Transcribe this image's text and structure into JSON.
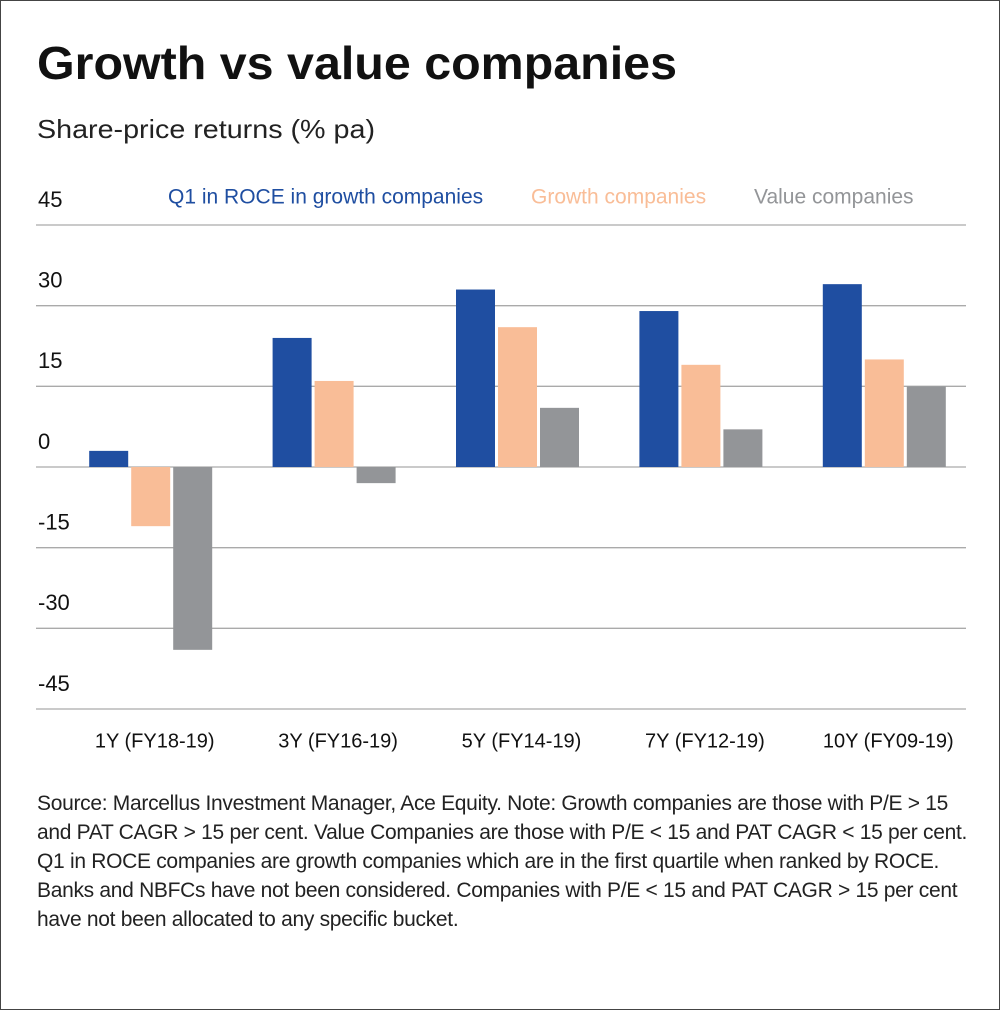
{
  "chart_data": {
    "type": "bar",
    "title": "Growth vs value companies",
    "subtitle": "Share-price returns (% pa)",
    "categories": [
      "1Y (FY18-19)",
      "3Y (FY16-19)",
      "5Y (FY14-19)",
      "7Y (FY12-19)",
      "10Y (FY09-19)"
    ],
    "series": [
      {
        "name": "Q1 in ROCE in growth companies",
        "color": "#1f4ea1",
        "values": [
          3,
          24,
          33,
          29,
          34
        ]
      },
      {
        "name": "Growth companies",
        "color": "#f9bd97",
        "values": [
          -11,
          16,
          26,
          19,
          20
        ]
      },
      {
        "name": "Value companies",
        "color": "#939598",
        "values": [
          -34,
          -3,
          11,
          7,
          15
        ]
      }
    ],
    "ylim": [
      -45,
      45
    ],
    "yticks": [
      45,
      30,
      15,
      0,
      -15,
      -30,
      -45
    ],
    "grid": true,
    "legend": "top",
    "note": "Source: Marcellus Investment Manager, Ace Equity. Note: Growth companies are those with P/E > 15 and PAT CAGR > 15 per cent. Value Companies are those with P/E < 15 and PAT CAGR < 15 per cent. Q1 in ROCE companies are growth companies which are in the first quartile when ranked by ROCE. Banks and NBFCs have not been considered. Companies with P/E < 15 and PAT CAGR > 15 per cent have not been allocated to any specific bucket."
  }
}
